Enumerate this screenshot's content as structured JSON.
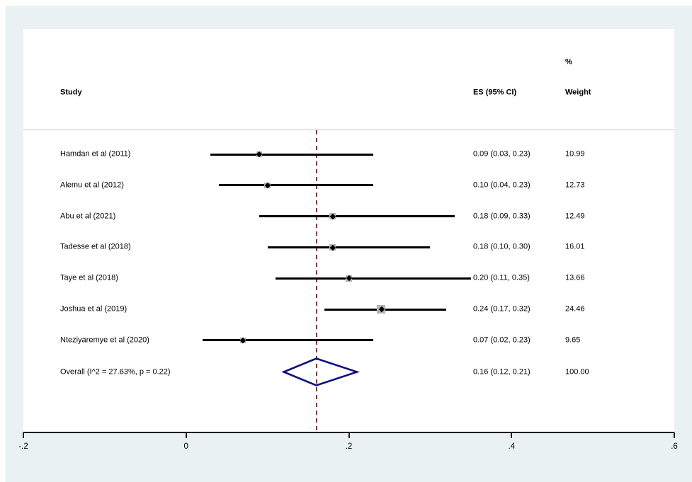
{
  "header": {
    "study": "Study",
    "es": "ES (95% CI)",
    "percent": "%",
    "weight": "Weight"
  },
  "chart_data": {
    "type": "forest",
    "title": "",
    "xlabel": "",
    "xlim": [
      -0.2,
      0.6
    ],
    "x_ticks": [
      -0.2,
      0,
      0.2,
      0.4,
      0.6
    ],
    "x_tick_labels": [
      "-.2",
      "0",
      ".2",
      ".4",
      ".6"
    ],
    "reference_line_at": 0.16,
    "studies": [
      {
        "label": "Hamdan et al (2011)",
        "es": 0.09,
        "ci_low": 0.03,
        "ci_high": 0.23,
        "es_text": "0.09 (0.03, 0.23)",
        "weight": 10.99,
        "weight_text": "10.99"
      },
      {
        "label": "Alemu et al (2012)",
        "es": 0.1,
        "ci_low": 0.04,
        "ci_high": 0.23,
        "es_text": "0.10 (0.04, 0.23)",
        "weight": 12.73,
        "weight_text": "12.73"
      },
      {
        "label": "Abu et al (2021)",
        "es": 0.18,
        "ci_low": 0.09,
        "ci_high": 0.33,
        "es_text": "0.18 (0.09, 0.33)",
        "weight": 12.49,
        "weight_text": "12.49"
      },
      {
        "label": "Tadesse et al (2018)",
        "es": 0.18,
        "ci_low": 0.1,
        "ci_high": 0.3,
        "es_text": "0.18 (0.10, 0.30)",
        "weight": 16.01,
        "weight_text": "16.01"
      },
      {
        "label": "Taye et al (2018)",
        "es": 0.2,
        "ci_low": 0.11,
        "ci_high": 0.35,
        "es_text": "0.20 (0.11, 0.35)",
        "weight": 13.66,
        "weight_text": "13.66"
      },
      {
        "label": "Joshua et al (2019)",
        "es": 0.24,
        "ci_low": 0.17,
        "ci_high": 0.32,
        "es_text": "0.24 (0.17, 0.32)",
        "weight": 24.46,
        "weight_text": "24.46"
      },
      {
        "label": "Nteziyaremye et al (2020)",
        "es": 0.07,
        "ci_low": 0.02,
        "ci_high": 0.23,
        "es_text": "0.07 (0.02, 0.23)",
        "weight": 9.65,
        "weight_text": "9.65"
      }
    ],
    "overall": {
      "label": "Overall  (I^2 = 27.63%, p = 0.22)",
      "es": 0.16,
      "ci_low": 0.12,
      "ci_high": 0.21,
      "es_text": "0.16 (0.12, 0.21)",
      "weight_text": "100.00"
    }
  },
  "colors": {
    "background": "#eaf1f3",
    "plot_bg": "#ffffff",
    "axis": "#1a1a1a",
    "separator": "#c4c4c4",
    "ci_line": "#000000",
    "marker_square": "#b4b4b4",
    "marker_point": "#000000",
    "diamond_stroke": "#10107e",
    "reference_line": "#993333",
    "text": "#000000"
  }
}
